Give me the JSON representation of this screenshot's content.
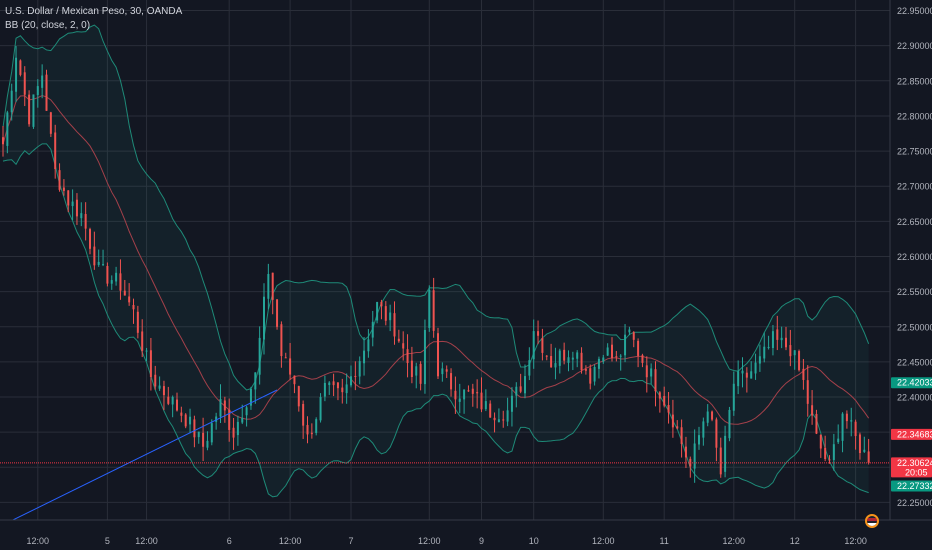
{
  "header": {
    "symbol_line": "U.S. Dollar / Mexican Peso, 30, OANDA",
    "indicator_line": "BB (20, close, 2, 0)"
  },
  "price_axis": {
    "ticks": [
      "22.95000",
      "22.90000",
      "22.85000",
      "22.80000",
      "22.75000",
      "22.70000",
      "22.65000",
      "22.60000",
      "22.55000",
      "22.50000",
      "22.45000",
      "22.40000",
      "22.35000",
      "22.30000",
      "22.25000"
    ],
    "tags": [
      {
        "value": 22.42033,
        "text": "22.42033",
        "color": "#089981",
        "text_color": "#ffffff"
      },
      {
        "value": 22.34683,
        "text": "22.34683",
        "color": "#f23645",
        "text_color": "#ffffff"
      },
      {
        "value": 22.30624,
        "text": "22.30624",
        "color": "#f23645",
        "text_color": "#ffffff",
        "sub": "20:05"
      },
      {
        "value": 22.27332,
        "text": "22.27332",
        "color": "#089981",
        "text_color": "#ffffff"
      }
    ]
  },
  "time_axis": {
    "labels": [
      {
        "i": 8,
        "text": "12:00"
      },
      {
        "i": 24,
        "text": "5"
      },
      {
        "i": 33,
        "text": "12:00"
      },
      {
        "i": 52,
        "text": "6"
      },
      {
        "i": 66,
        "text": "12:00"
      },
      {
        "i": 80,
        "text": "7"
      },
      {
        "i": 98,
        "text": "12:00"
      },
      {
        "i": 110,
        "text": "9"
      },
      {
        "i": 122,
        "text": "10"
      },
      {
        "i": 138,
        "text": "12:00"
      },
      {
        "i": 152,
        "text": "11"
      },
      {
        "i": 168,
        "text": "12:00"
      },
      {
        "i": 182,
        "text": "12"
      },
      {
        "i": 196,
        "text": "12:00"
      }
    ]
  },
  "colors": {
    "background": "#131722",
    "grid": "#2a2e39",
    "up": "#26a69a",
    "down": "#ef5350",
    "band_line": "#1e8a78",
    "band_fill": "rgba(38,166,154,0.07)",
    "basis": "#a3404a",
    "trendline": "#2962ff",
    "price_line": "#f23645"
  },
  "chart_data": {
    "type": "candlestick",
    "symbol": "U.S. Dollar / Mexican Peso",
    "interval": "30",
    "source": "OANDA",
    "indicator": "BB (20, close, 2, 0)",
    "y_range": [
      22.225,
      22.965
    ],
    "y_ticks": [
      22.95,
      22.9,
      22.85,
      22.8,
      22.75,
      22.7,
      22.65,
      22.6,
      22.55,
      22.5,
      22.45,
      22.4,
      22.35,
      22.3,
      22.25
    ],
    "bars": 200,
    "close_anchors": [
      [
        0,
        22.76
      ],
      [
        3,
        22.89
      ],
      [
        6,
        22.8
      ],
      [
        9,
        22.86
      ],
      [
        12,
        22.72
      ],
      [
        15,
        22.68
      ],
      [
        18,
        22.66
      ],
      [
        22,
        22.58
      ],
      [
        27,
        22.56
      ],
      [
        30,
        22.52
      ],
      [
        34,
        22.43
      ],
      [
        38,
        22.4
      ],
      [
        42,
        22.37
      ],
      [
        46,
        22.33
      ],
      [
        50,
        22.39
      ],
      [
        53,
        22.35
      ],
      [
        58,
        22.43
      ],
      [
        61,
        22.58
      ],
      [
        64,
        22.46
      ],
      [
        67,
        22.42
      ],
      [
        70,
        22.34
      ],
      [
        74,
        22.41
      ],
      [
        78,
        22.4
      ],
      [
        83,
        22.47
      ],
      [
        86,
        22.53
      ],
      [
        90,
        22.5
      ],
      [
        93,
        22.45
      ],
      [
        96,
        22.42
      ],
      [
        98,
        22.55
      ],
      [
        100,
        22.44
      ],
      [
        104,
        22.41
      ],
      [
        108,
        22.4
      ],
      [
        112,
        22.38
      ],
      [
        116,
        22.38
      ],
      [
        120,
        22.43
      ],
      [
        122,
        22.5
      ],
      [
        126,
        22.45
      ],
      [
        131,
        22.47
      ],
      [
        135,
        22.43
      ],
      [
        138,
        22.47
      ],
      [
        141,
        22.45
      ],
      [
        144,
        22.49
      ],
      [
        148,
        22.44
      ],
      [
        151,
        22.41
      ],
      [
        154,
        22.37
      ],
      [
        158,
        22.3
      ],
      [
        162,
        22.39
      ],
      [
        165,
        22.29
      ],
      [
        168,
        22.42
      ],
      [
        171,
        22.43
      ],
      [
        174,
        22.45
      ],
      [
        177,
        22.48
      ],
      [
        181,
        22.47
      ],
      [
        184,
        22.42
      ],
      [
        187,
        22.34
      ],
      [
        190,
        22.3
      ],
      [
        193,
        22.38
      ],
      [
        196,
        22.34
      ],
      [
        199,
        22.31
      ]
    ],
    "current_price": 22.30624,
    "upper_band_last": 22.42033,
    "basis_last": 22.34683,
    "lower_band_last": 22.27332,
    "countdown": "20:05",
    "trendline": {
      "from": [
        -1,
        22.215
      ],
      "to": [
        63,
        22.41
      ]
    }
  }
}
